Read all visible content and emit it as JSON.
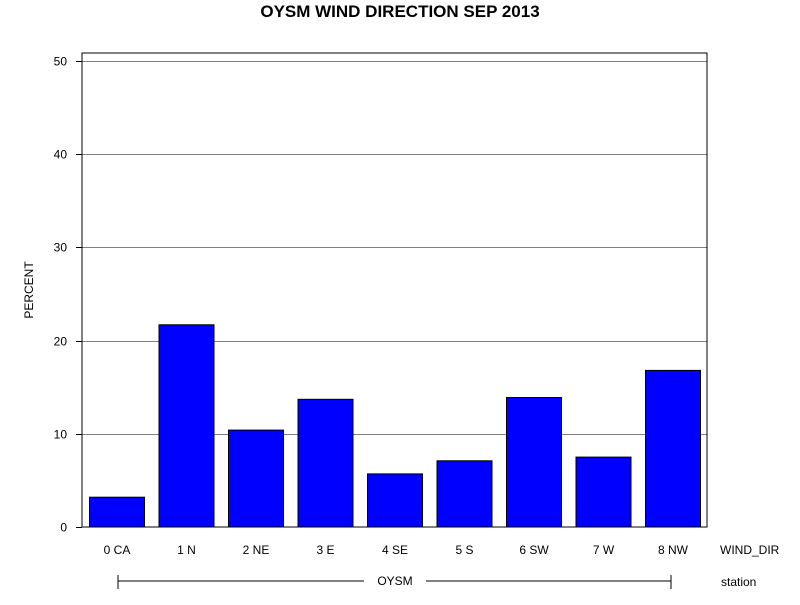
{
  "colors": {
    "bar_fill": "#0000ff",
    "bar_stroke": "#000000",
    "grid": "#808080",
    "background": "#ffffff"
  },
  "chart_data": {
    "type": "bar",
    "title": "OYSM WIND DIRECTION SEP 2013",
    "xlabel": "WIND_DIR",
    "ylabel": "PERCENT",
    "categories": [
      "0 CA",
      "1 N",
      "2 NE",
      "3 E",
      "4 SE",
      "5 S",
      "6 SW",
      "7 W",
      "8 NW"
    ],
    "values": [
      3.2,
      21.7,
      10.4,
      13.7,
      5.7,
      7.1,
      13.9,
      7.5,
      16.8
    ],
    "ylim": [
      0,
      50
    ],
    "yticks": [
      0,
      10,
      20,
      30,
      40,
      50
    ],
    "grid": true,
    "group_label": "OYSM",
    "group_axis_label": "station"
  }
}
